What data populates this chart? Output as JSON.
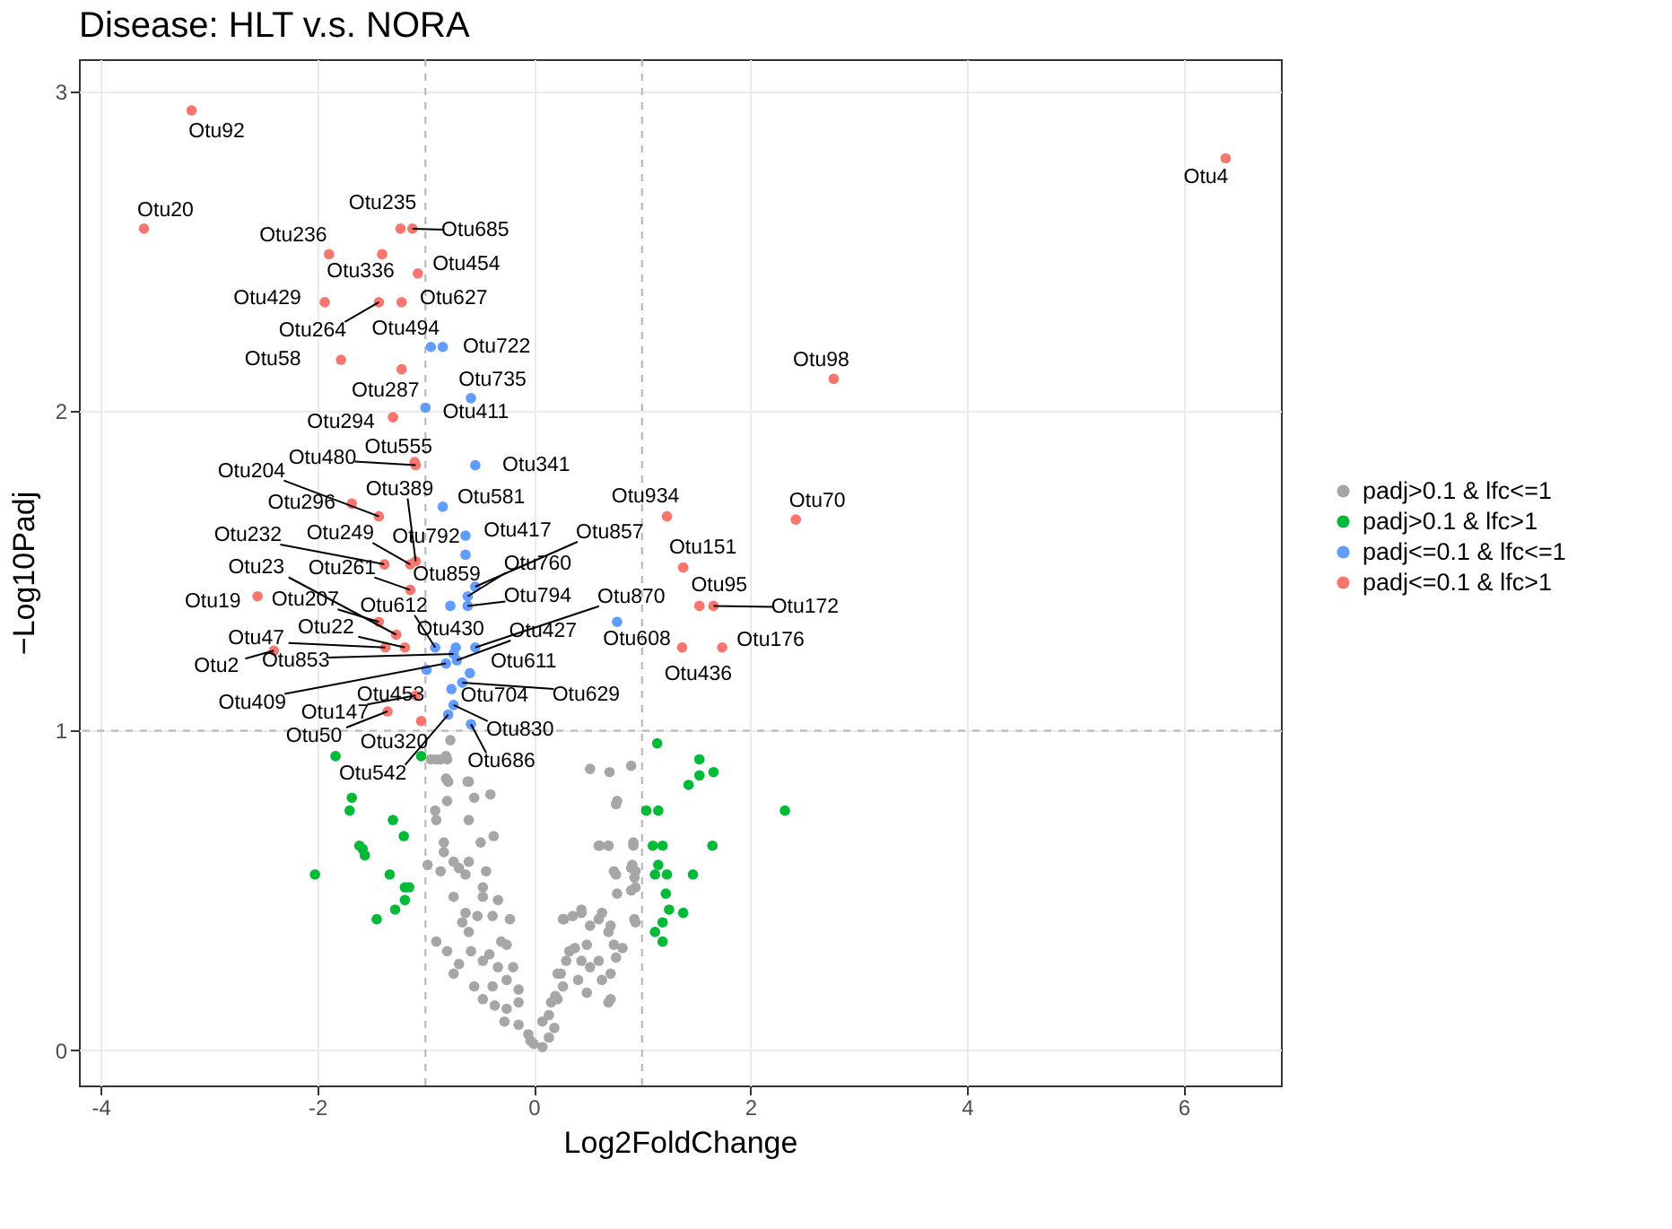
{
  "chart_data": {
    "type": "scatter",
    "title": "Disease: HLT v.s. NORA",
    "xlabel": "Log2FoldChange",
    "ylabel": "−Log10Padj",
    "xlim": [
      -4.2,
      6.9
    ],
    "ylim": [
      -0.11,
      3.1
    ],
    "xticks": [
      -4,
      -2,
      0,
      2,
      4,
      6
    ],
    "yticks": [
      0,
      1,
      2,
      3
    ],
    "grid": true,
    "legend": "right",
    "marker": "circle",
    "ref_lines": [
      {
        "axis": "x",
        "value": -1,
        "color": "#b3b3b3",
        "line_style": "dashed"
      },
      {
        "axis": "x",
        "value": 1,
        "color": "#b3b3b3",
        "line_style": "dashed"
      },
      {
        "axis": "y",
        "value": 1,
        "color": "#b3b3b3",
        "line_style": "dashed"
      }
    ],
    "series": [
      {
        "name": "padj>0.1 & lfc<=1",
        "color": "#a6a6a6",
        "x": [
          -0.77,
          -0.81,
          -0.9,
          -0.8,
          -0.81,
          -0.6,
          -0.55,
          -0.4,
          -0.8,
          -0.91,
          -0.9,
          -0.6,
          -0.83,
          -0.49,
          -0.37,
          -0.83,
          -0.74,
          -0.98,
          -0.86,
          -0.69,
          -0.6,
          -0.63,
          -0.44,
          -0.47,
          -0.74,
          -0.47,
          -0.33,
          -0.63,
          -0.52,
          -0.38,
          -0.22,
          -0.66,
          -0.9,
          -0.8,
          -0.6,
          -0.3,
          -0.58,
          -0.41,
          -0.25,
          -0.69,
          -0.47,
          -0.33,
          -0.19,
          -0.74,
          -0.55,
          -0.38,
          -0.25,
          -0.14,
          -0.47,
          -0.36,
          -0.25,
          -0.14,
          -0.27,
          -0.14,
          -0.05,
          0.0,
          0.08,
          0.14,
          0.19,
          0.14,
          0.16,
          0.22,
          0.27,
          0.22,
          0.3,
          0.33,
          0.38,
          0.49,
          0.44,
          0.52,
          0.6,
          0.41,
          0.63,
          0.71,
          0.71,
          0.49,
          0.36,
          0.44,
          0.6,
          0.27,
          0.52,
          0.69,
          0.74,
          0.76,
          0.93,
          0.9,
          0.76,
          0.9,
          0.93,
          0.6,
          0.69,
          0.92,
          0.76,
          0.52,
          0.7,
          0.9,
          -0.86,
          -0.95,
          -0.79,
          -0.61,
          0.77,
          0.61,
          0.69,
          0.92,
          0.91,
          0.74,
          0.94,
          0.77,
          0.94,
          0.28,
          0.44,
          0.63,
          0.71,
          0.94,
          0.82,
          0.69,
          0.33,
          0.25,
          0.2,
          0.08,
          -0.03
        ],
        "values": [
          0.97,
          0.92,
          0.91,
          0.91,
          0.85,
          0.84,
          0.79,
          0.8,
          0.78,
          0.75,
          0.72,
          0.72,
          0.65,
          0.65,
          0.67,
          0.62,
          0.59,
          0.58,
          0.56,
          0.57,
          0.59,
          0.55,
          0.56,
          0.51,
          0.48,
          0.48,
          0.47,
          0.43,
          0.42,
          0.42,
          0.41,
          0.4,
          0.34,
          0.31,
          0.37,
          0.34,
          0.31,
          0.3,
          0.33,
          0.27,
          0.28,
          0.26,
          0.26,
          0.24,
          0.2,
          0.2,
          0.22,
          0.19,
          0.16,
          0.14,
          0.13,
          0.15,
          0.09,
          0.08,
          0.05,
          0.02,
          0.01,
          0.04,
          0.07,
          0.11,
          0.15,
          0.16,
          0.2,
          0.24,
          0.28,
          0.31,
          0.32,
          0.33,
          0.28,
          0.26,
          0.28,
          0.22,
          0.22,
          0.24,
          0.16,
          0.18,
          0.42,
          0.44,
          0.41,
          0.41,
          0.39,
          0.37,
          0.33,
          0.29,
          0.41,
          0.5,
          0.55,
          0.57,
          0.54,
          0.64,
          0.64,
          0.65,
          0.77,
          0.88,
          0.87,
          0.89,
          0.91,
          0.91,
          0.84,
          0.84,
          0.78,
          0.64,
          0.64,
          0.64,
          0.58,
          0.56,
          0.56,
          0.49,
          0.51,
          0.41,
          0.43,
          0.43,
          0.39,
          0.4,
          0.32,
          0.15,
          0.31,
          0.24,
          0.17,
          0.09,
          0.03
        ]
      },
      {
        "name": "padj>0.1 & lfc>1",
        "color": "#00ba38",
        "x": [
          -1.83,
          -1.68,
          -1.7,
          -1.3,
          -1.2,
          -1.61,
          -1.58,
          -1.56,
          -2.02,
          -1.33,
          -1.19,
          -1.15,
          -1.19,
          -1.28,
          -1.45,
          -1.04,
          1.14,
          1.53,
          1.66,
          1.53,
          1.43,
          1.04,
          1.15,
          2.32,
          1.1,
          1.19,
          1.65,
          1.15,
          1.12,
          1.23,
          1.47,
          1.22,
          1.25,
          1.38,
          1.19,
          1.12,
          1.19
        ],
        "values": [
          0.92,
          0.79,
          0.75,
          0.72,
          0.67,
          0.64,
          0.63,
          0.61,
          0.55,
          0.55,
          0.51,
          0.51,
          0.47,
          0.44,
          0.41,
          0.92,
          0.96,
          0.91,
          0.87,
          0.86,
          0.83,
          0.75,
          0.75,
          0.75,
          0.64,
          0.64,
          0.64,
          0.58,
          0.55,
          0.55,
          0.55,
          0.49,
          0.44,
          0.43,
          0.4,
          0.37,
          0.34
        ]
      },
      {
        "name": "padj<=0.1 & lfc<=1",
        "color": "#619cff",
        "x": [
          -0.95,
          -0.84,
          -0.58,
          -1.0,
          -0.54,
          -0.84,
          -0.63,
          -0.63,
          -0.54,
          -0.61,
          -0.77,
          -0.61,
          -0.54,
          -0.91,
          -0.72,
          -0.71,
          -0.74,
          -0.99,
          -0.59,
          -0.66,
          -0.76,
          -0.58,
          -0.74,
          -0.79,
          0.77,
          -0.81
        ],
        "values": [
          2.2,
          2.2,
          2.04,
          2.01,
          1.83,
          1.7,
          1.61,
          1.55,
          1.45,
          1.42,
          1.39,
          1.39,
          1.26,
          1.26,
          1.26,
          1.22,
          1.24,
          1.19,
          1.18,
          1.15,
          1.13,
          1.02,
          1.08,
          1.05,
          1.34,
          1.21
        ]
      },
      {
        "name": "padj<=0.1 & lfc>1",
        "color": "#f8766d",
        "x": [
          -3.16,
          -3.6,
          6.39,
          -1.23,
          -1.12,
          -1.89,
          -1.4,
          -1.07,
          -1.93,
          -1.43,
          -1.22,
          -1.78,
          -1.22,
          -1.3,
          -1.09,
          -1.1,
          -1.43,
          -1.68,
          -1.09,
          1.23,
          2.42,
          -1.38,
          -1.14,
          1.38,
          -1.27,
          -1.14,
          -2.55,
          -1.43,
          1.53,
          1.66,
          -1.37,
          -1.19,
          1.74,
          -2.4,
          1.37,
          -1.09,
          -1.35,
          -1.04,
          2.77
        ],
        "values": [
          2.94,
          2.57,
          2.79,
          2.57,
          2.57,
          2.49,
          2.49,
          2.43,
          2.34,
          2.34,
          2.34,
          2.16,
          2.13,
          1.98,
          1.83,
          1.84,
          1.67,
          1.71,
          1.53,
          1.67,
          1.66,
          1.52,
          1.52,
          1.51,
          1.3,
          1.44,
          1.42,
          1.34,
          1.39,
          1.39,
          1.26,
          1.26,
          1.26,
          1.25,
          1.26,
          1.11,
          1.06,
          1.03,
          2.1
        ]
      }
    ],
    "annotations": [
      {
        "text": "Otu92",
        "x": -3.16,
        "y": 2.94
      },
      {
        "text": "Otu20",
        "x": -3.6,
        "y": 2.57
      },
      {
        "text": "Otu4",
        "x": 6.39,
        "y": 2.79
      },
      {
        "text": "Otu235",
        "x": -1.23,
        "y": 2.57
      },
      {
        "text": "Otu685",
        "x": -1.12,
        "y": 2.57
      },
      {
        "text": "Otu236",
        "x": -1.89,
        "y": 2.49
      },
      {
        "text": "Otu336",
        "x": -1.4,
        "y": 2.49
      },
      {
        "text": "Otu454",
        "x": -1.07,
        "y": 2.43
      },
      {
        "text": "Otu429",
        "x": -1.93,
        "y": 2.34
      },
      {
        "text": "Otu264",
        "x": -1.43,
        "y": 2.34
      },
      {
        "text": "Otu627",
        "x": -1.22,
        "y": 2.34
      },
      {
        "text": "Otu494",
        "x": -0.95,
        "y": 2.2
      },
      {
        "text": "Otu722",
        "x": -0.84,
        "y": 2.2
      },
      {
        "text": "Otu58",
        "x": -1.78,
        "y": 2.16
      },
      {
        "text": "Otu287",
        "x": -1.22,
        "y": 2.13
      },
      {
        "text": "Otu735",
        "x": -0.58,
        "y": 2.04
      },
      {
        "text": "Otu411",
        "x": -1.0,
        "y": 2.01
      },
      {
        "text": "Otu294",
        "x": -1.3,
        "y": 1.98
      },
      {
        "text": "Otu480",
        "x": -1.09,
        "y": 1.83
      },
      {
        "text": "Otu555",
        "x": -1.1,
        "y": 1.84
      },
      {
        "text": "Otu341",
        "x": -0.54,
        "y": 1.83
      },
      {
        "text": "Otu204",
        "x": -1.43,
        "y": 1.67
      },
      {
        "text": "Otu296",
        "x": -1.68,
        "y": 1.71
      },
      {
        "text": "Otu389",
        "x": -1.09,
        "y": 1.53
      },
      {
        "text": "Otu581",
        "x": -0.84,
        "y": 1.7
      },
      {
        "text": "Otu934",
        "x": 1.23,
        "y": 1.67
      },
      {
        "text": "Otu70",
        "x": 2.42,
        "y": 1.66
      },
      {
        "text": "Otu232",
        "x": -1.38,
        "y": 1.52
      },
      {
        "text": "Otu249",
        "x": -1.14,
        "y": 1.52
      },
      {
        "text": "Otu792",
        "x": -0.63,
        "y": 1.61
      },
      {
        "text": "Otu417",
        "x": -0.63,
        "y": 1.55
      },
      {
        "text": "Otu857",
        "x": -0.54,
        "y": 1.45
      },
      {
        "text": "Otu151",
        "x": 1.38,
        "y": 1.51
      },
      {
        "text": "Otu23",
        "x": -1.27,
        "y": 1.3
      },
      {
        "text": "Otu261",
        "x": -1.14,
        "y": 1.44
      },
      {
        "text": "Otu859",
        "x": -0.77,
        "y": 1.39
      },
      {
        "text": "Otu760",
        "x": -0.61,
        "y": 1.42
      },
      {
        "text": "Otu19",
        "x": -2.55,
        "y": 1.42
      },
      {
        "text": "Otu207",
        "x": -1.43,
        "y": 1.34
      },
      {
        "text": "Otu612",
        "x": -0.91,
        "y": 1.26
      },
      {
        "text": "Otu794",
        "x": -0.61,
        "y": 1.39
      },
      {
        "text": "Otu870",
        "x": -0.54,
        "y": 1.26
      },
      {
        "text": "Otu95",
        "x": 1.53,
        "y": 1.39
      },
      {
        "text": "Otu172",
        "x": 1.66,
        "y": 1.39
      },
      {
        "text": "Otu47",
        "x": -1.37,
        "y": 1.26
      },
      {
        "text": "Otu22",
        "x": -1.19,
        "y": 1.26
      },
      {
        "text": "Otu430",
        "x": -0.72,
        "y": 1.26
      },
      {
        "text": "Otu427",
        "x": -0.71,
        "y": 1.22
      },
      {
        "text": "Otu608",
        "x": 0.77,
        "y": 1.34
      },
      {
        "text": "Otu176",
        "x": 1.74,
        "y": 1.26
      },
      {
        "text": "Otu2",
        "x": -2.4,
        "y": 1.25
      },
      {
        "text": "Otu853",
        "x": -0.74,
        "y": 1.24
      },
      {
        "text": "Otu453",
        "x": -0.99,
        "y": 1.19
      },
      {
        "text": "Otu611",
        "x": -0.59,
        "y": 1.18
      },
      {
        "text": "Otu436",
        "x": 1.37,
        "y": 1.26
      },
      {
        "text": "Otu409",
        "x": -0.81,
        "y": 1.21
      },
      {
        "text": "Otu147",
        "x": -1.09,
        "y": 1.11
      },
      {
        "text": "Otu704",
        "x": -0.76,
        "y": 1.13
      },
      {
        "text": "Otu629",
        "x": -0.66,
        "y": 1.15
      },
      {
        "text": "Otu50",
        "x": -1.35,
        "y": 1.06
      },
      {
        "text": "Otu320",
        "x": -1.04,
        "y": 1.03
      },
      {
        "text": "Otu830",
        "x": -0.74,
        "y": 1.08
      },
      {
        "text": "Otu686",
        "x": -0.58,
        "y": 1.02
      },
      {
        "text": "Otu542",
        "x": -0.79,
        "y": 1.05
      },
      {
        "text": "Otu98",
        "x": 2.77,
        "y": 2.1
      }
    ]
  }
}
